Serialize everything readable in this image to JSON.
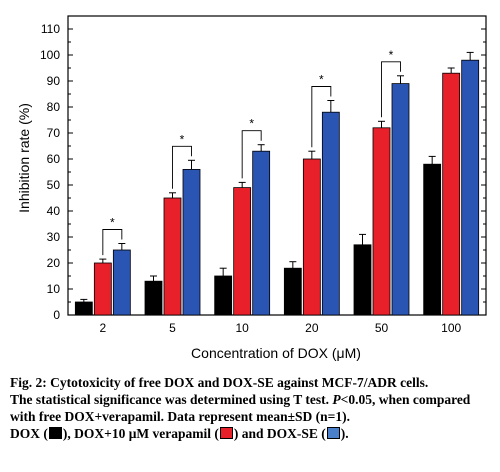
{
  "chart_data": {
    "type": "bar",
    "ylabel": "Inhibition rate (%)",
    "xlabel": "Concentration of DOX (μM)",
    "categories": [
      "2",
      "5",
      "10",
      "20",
      "50",
      "100"
    ],
    "ylim": [
      0,
      115
    ],
    "yticks": [
      0,
      10,
      20,
      30,
      40,
      50,
      60,
      70,
      80,
      90,
      100,
      110
    ],
    "ytick_labels": [
      "0",
      "10",
      "20",
      "30",
      "40",
      "50",
      "60",
      "70",
      "80",
      "90",
      "100",
      "110"
    ],
    "grid": false,
    "series": [
      {
        "name": "DOX",
        "color": "#000000",
        "values": [
          5,
          13,
          15,
          18,
          27,
          58
        ],
        "errors": [
          1,
          2,
          3,
          2.5,
          4,
          3
        ]
      },
      {
        "name": "DOX+10 μM verapamil",
        "color": "#e8202a",
        "values": [
          20,
          45,
          49,
          60,
          72,
          93
        ],
        "errors": [
          1.5,
          2,
          2,
          3,
          2.5,
          2
        ]
      },
      {
        "name": "DOX-SE",
        "color": "#2b55b3",
        "values": [
          25,
          56,
          63,
          78,
          89,
          98
        ],
        "errors": [
          2.5,
          3.5,
          2.5,
          4.5,
          3,
          3
        ]
      }
    ],
    "significance": [
      {
        "category": "2",
        "label": "*"
      },
      {
        "category": "5",
        "label": "*"
      },
      {
        "category": "10",
        "label": "*"
      },
      {
        "category": "20",
        "label": "*"
      },
      {
        "category": "50",
        "label": "*"
      }
    ]
  },
  "caption": {
    "line1": "Fig. 2: Cytotoxicity of free DOX and DOX-SE against MCF-7/ADR cells.",
    "line2a": "The statistical significance was determined using T test. ",
    "p_letter": "P",
    "line2b": "<0.05, when compared with free DOX+verapamil. Data represent mean±SD (n=1).",
    "legend_dox": "DOX (",
    "legend_ver": "), DOX+10 μM verapamil (",
    "legend_se": ") and DOX-SE (",
    "legend_end": ")."
  }
}
